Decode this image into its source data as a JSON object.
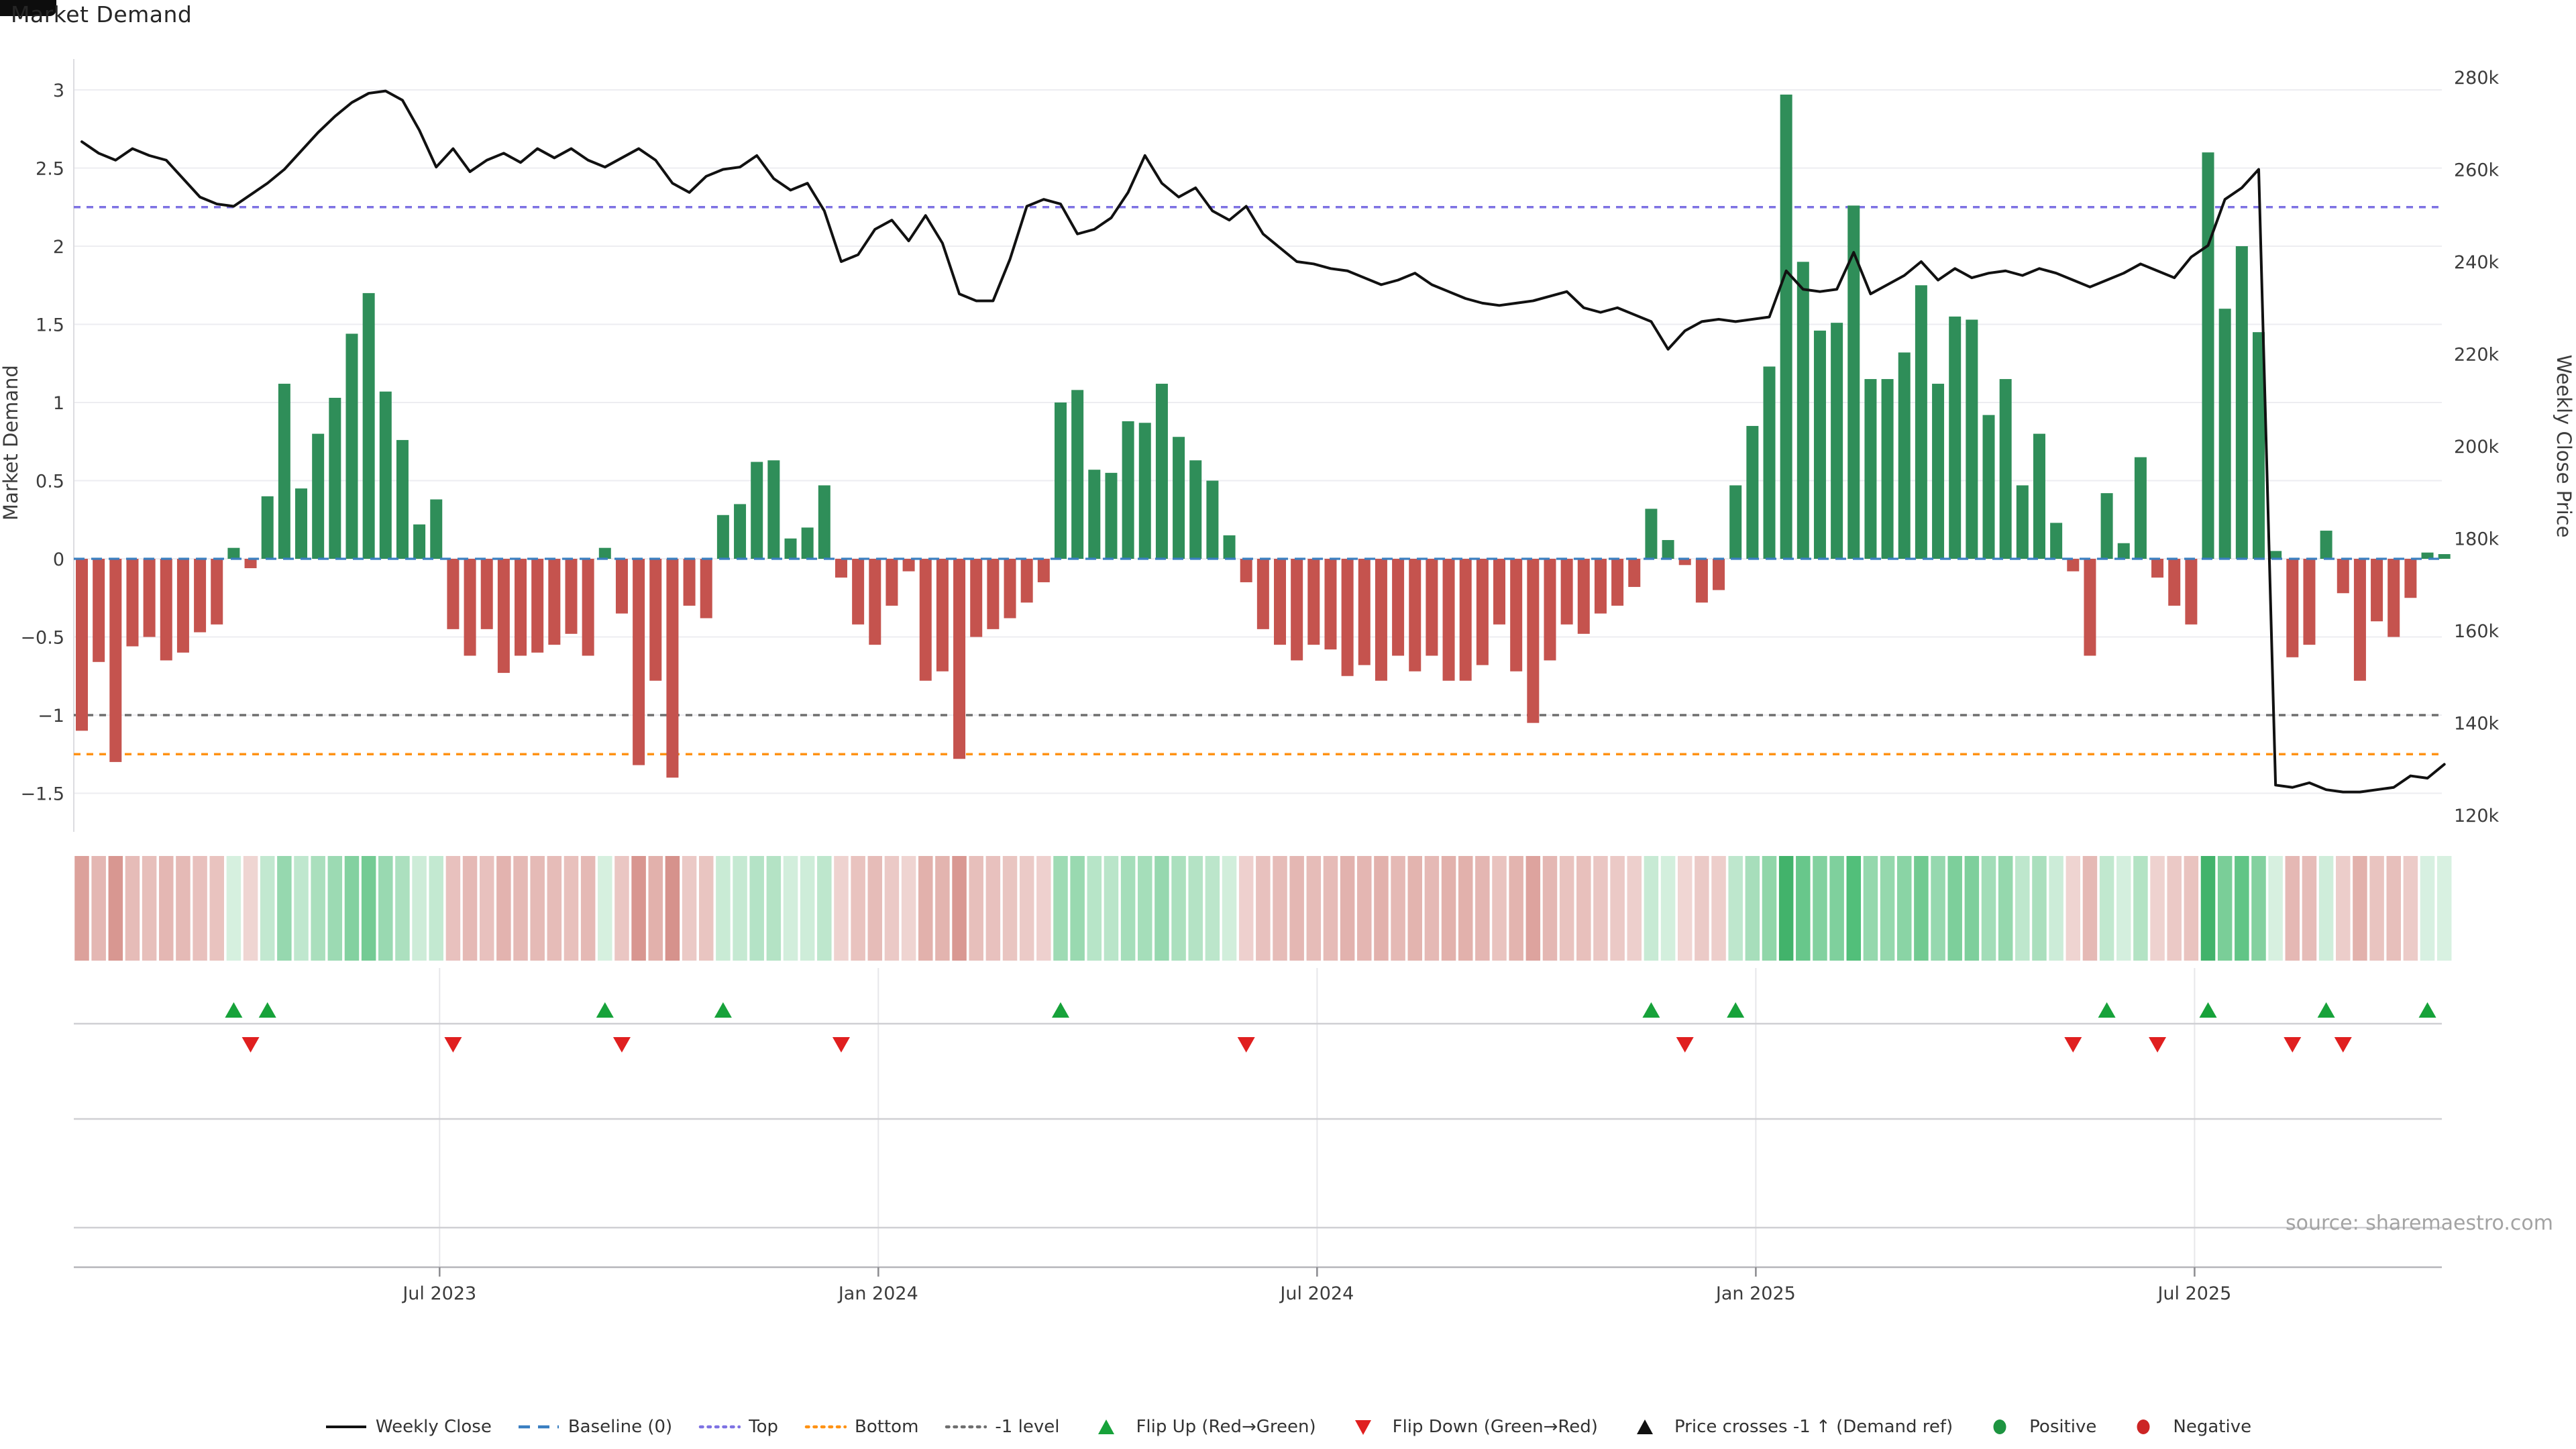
{
  "window": {
    "title": "Market Demand",
    "source_note": "source: sharemaestro.com"
  },
  "chart_data": {
    "type": "combo-bar-line-heatmap",
    "title": "Market Demand",
    "grid": true,
    "left_axis": {
      "label": "Market Demand",
      "ticks": [
        3,
        2.5,
        2,
        1.5,
        1,
        0.5,
        0,
        -0.5,
        -1,
        -1.5
      ],
      "tick_labels": [
        "3",
        "2.5",
        "2",
        "1.5",
        "1",
        "0.5",
        "0",
        "−0.5",
        "−1",
        "−1.5"
      ],
      "range": [
        -1.72,
        3.18
      ]
    },
    "right_axis": {
      "label": "Weekly Close Price",
      "ticks": [
        280,
        260,
        240,
        220,
        200,
        180,
        160,
        140,
        120
      ],
      "tick_labels": [
        "280k",
        "260k",
        "240k",
        "220k",
        "200k",
        "180k",
        "160k",
        "140k",
        "120k"
      ],
      "range_k": [
        117.5,
        280.7
      ]
    },
    "x_axis": {
      "tick_labels": [
        "Jul 2023",
        "Jan 2024",
        "Jul 2024",
        "Jan 2025",
        "Jul 2025"
      ],
      "tick_weeks": [
        21.2,
        47.2,
        73.2,
        99.2,
        125.2
      ]
    },
    "reference_lines": {
      "baseline": {
        "label": "Baseline (0)",
        "value": 0,
        "color": "#3a7fc1",
        "style": "dashed"
      },
      "top": {
        "label": "Top",
        "value": 2.25,
        "color": "#7e72e3",
        "style": "dotted"
      },
      "bottom": {
        "label": "Bottom",
        "value": -1.25,
        "color": "#ff9214",
        "style": "dotted"
      },
      "minus_one": {
        "label": "-1 level",
        "value": -1,
        "color": "#6e6e6e",
        "style": "dotted"
      }
    },
    "series": [
      {
        "name": "Market Demand",
        "type": "bar",
        "axis": "left",
        "positive_color": "#2f8e59",
        "negative_color": "#c5534e",
        "values": [
          -1.1,
          -0.66,
          -1.3,
          -0.56,
          -0.5,
          -0.65,
          -0.6,
          -0.47,
          -0.42,
          0.07,
          -0.06,
          0.4,
          1.12,
          0.45,
          0.8,
          1.03,
          1.44,
          1.7,
          1.07,
          0.76,
          0.22,
          0.38,
          -0.45,
          -0.62,
          -0.45,
          -0.73,
          -0.62,
          -0.6,
          -0.55,
          -0.48,
          -0.62,
          0.07,
          -0.35,
          -1.32,
          -0.78,
          -1.4,
          -0.3,
          -0.38,
          0.28,
          0.35,
          0.62,
          0.63,
          0.13,
          0.2,
          0.47,
          -0.12,
          -0.42,
          -0.55,
          -0.3,
          -0.08,
          -0.78,
          -0.72,
          -1.28,
          -0.5,
          -0.45,
          -0.38,
          -0.28,
          -0.15,
          1.0,
          1.08,
          0.57,
          0.55,
          0.88,
          0.87,
          1.12,
          0.78,
          0.63,
          0.5,
          0.15,
          -0.15,
          -0.45,
          -0.55,
          -0.65,
          -0.55,
          -0.58,
          -0.75,
          -0.68,
          -0.78,
          -0.62,
          -0.72,
          -0.62,
          -0.78,
          -0.78,
          -0.68,
          -0.42,
          -0.72,
          -1.05,
          -0.65,
          -0.42,
          -0.48,
          -0.35,
          -0.3,
          -0.18,
          0.32,
          0.12,
          -0.04,
          -0.28,
          -0.2,
          0.47,
          0.85,
          1.23,
          2.97,
          1.9,
          1.46,
          1.51,
          2.26,
          1.15,
          1.15,
          1.32,
          1.75,
          1.12,
          1.55,
          1.53,
          0.92,
          1.15,
          0.47,
          0.8,
          0.23,
          -0.08,
          -0.62,
          0.42,
          0.1,
          0.65,
          -0.12,
          -0.3,
          -0.42,
          2.6,
          1.6,
          2.0,
          1.45,
          0.05,
          -0.63,
          -0.55,
          0.18,
          -0.22,
          -0.78,
          -0.4,
          -0.5,
          -0.25,
          0.04,
          0.03
        ]
      },
      {
        "name": "Weekly Close",
        "type": "line",
        "axis": "right",
        "color": "#111111",
        "values_k": [
          266,
          263.5,
          262,
          264.5,
          263,
          262,
          258,
          254,
          252.5,
          252,
          254.5,
          257,
          260,
          264,
          268,
          271.5,
          274.5,
          276.5,
          277,
          275,
          268.5,
          260.5,
          264.5,
          259.5,
          262,
          263.5,
          261.5,
          264.5,
          262.5,
          264.5,
          262,
          260.5,
          262.5,
          264.5,
          262,
          257,
          255,
          258.5,
          260,
          260.5,
          263,
          258,
          255.5,
          257,
          251,
          240,
          241.5,
          247,
          249,
          244.5,
          250,
          244,
          233,
          231.5,
          231.5,
          240.5,
          252,
          253.5,
          252.5,
          246,
          247,
          249.5,
          255,
          263,
          257,
          254,
          256,
          251,
          249,
          252,
          246,
          243,
          240,
          239.5,
          238.5,
          238,
          236.5,
          235,
          236,
          237.5,
          235,
          233.5,
          232,
          231,
          230.5,
          231,
          231.5,
          232.5,
          233.5,
          230,
          229,
          230,
          228.5,
          227,
          221,
          225,
          227,
          227.5,
          227,
          227.5,
          228,
          238,
          234,
          233.5,
          234,
          242,
          233,
          235,
          237,
          240,
          236,
          238.5,
          236.5,
          237.5,
          238,
          237,
          238.5,
          237.5,
          236,
          234.5,
          236,
          237.5,
          239.5,
          238,
          236.5,
          241,
          243.5,
          253.5,
          256,
          260,
          126.5,
          126,
          127,
          125.5,
          125,
          125,
          125.5,
          126,
          128.5,
          128,
          131
        ]
      }
    ],
    "heatmap": {
      "description": "weekly demand intensity strip, red negative / green positive"
    },
    "markers": {
      "flip_up_weeks": [
        9,
        11,
        31,
        38,
        58,
        93,
        98,
        120,
        126,
        133,
        139
      ],
      "flip_down_weeks": [
        10,
        22,
        32,
        45,
        69,
        95,
        118,
        123,
        131,
        134
      ],
      "price_cross_weeks": [],
      "flip_up_color": "#17a23a",
      "flip_down_color": "#e01f1f"
    }
  },
  "legend": {
    "items": [
      {
        "name": "legend-weekly-close",
        "icon": "line-swatch-icon",
        "type": "line",
        "color": "#111111",
        "label": "Weekly Close"
      },
      {
        "name": "legend-baseline",
        "icon": "dashed-line-swatch-icon",
        "type": "dashes",
        "color": "#3a7fc1",
        "label": "Baseline (0)"
      },
      {
        "name": "legend-top",
        "icon": "dotted-line-swatch-icon",
        "type": "dots",
        "color": "#7e72e3",
        "label": "Top"
      },
      {
        "name": "legend-bottom",
        "icon": "dotted-line-swatch-icon",
        "type": "dots",
        "color": "#ff9214",
        "label": "Bottom"
      },
      {
        "name": "legend-minus-1-level",
        "icon": "dotted-line-swatch-icon",
        "type": "dots",
        "color": "#6e6e6e",
        "label": "-1 level"
      },
      {
        "name": "legend-flip-up",
        "icon": "triangle-up-icon",
        "type": "tri-up",
        "color": "#17a23a",
        "label": "Flip Up (Red→Green)"
      },
      {
        "name": "legend-flip-down",
        "icon": "triangle-down-icon",
        "type": "tri-dn",
        "color": "#e01f1f",
        "label": "Flip Down (Green→Red)"
      },
      {
        "name": "legend-price-crosses",
        "icon": "triangle-up-icon",
        "type": "tri-up",
        "color": "#111111",
        "label": "Price crosses -1 ↑ (Demand ref)"
      },
      {
        "name": "legend-positive",
        "icon": "circle-icon",
        "type": "circle",
        "color": "#1d9440",
        "label": "Positive"
      },
      {
        "name": "legend-negative",
        "icon": "circle-icon",
        "type": "circle",
        "color": "#cc2525",
        "label": "Negative"
      }
    ]
  }
}
